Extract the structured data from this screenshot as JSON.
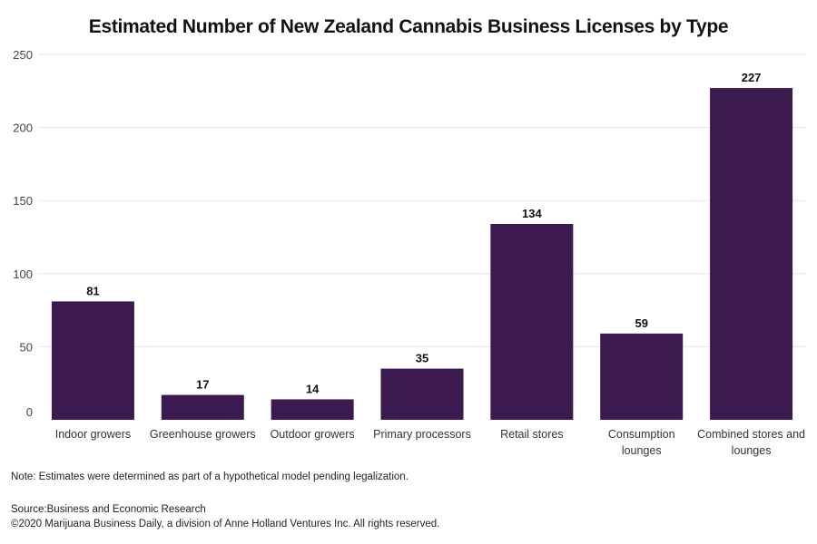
{
  "chart_data": {
    "type": "bar",
    "title": "Estimated Number of New Zealand Cannabis Business Licenses by Type",
    "categories": [
      [
        "Indoor growers"
      ],
      [
        "Greenhouse growers"
      ],
      [
        "Outdoor growers"
      ],
      [
        "Primary processors"
      ],
      [
        "Retail stores"
      ],
      [
        "Consumption",
        "lounges"
      ],
      [
        "Combined stores and",
        "lounges"
      ]
    ],
    "values": [
      81,
      17,
      14,
      35,
      134,
      59,
      227
    ],
    "ylim": [
      0,
      250
    ],
    "yticks": [
      0,
      50,
      100,
      150,
      200,
      250
    ],
    "xlabel": "",
    "ylabel": "",
    "grid": true,
    "bar_color": "#3b1a4f",
    "grid_color": "#e6e6e6",
    "legend": "none"
  },
  "footer": {
    "note": "Note: Estimates were determined as part of a hypothetical model pending legalization.",
    "source": "Source:Business and Economic Research",
    "copyright": "©2020 Marijuana Business Daily, a division of Anne Holland Ventures Inc. All rights reserved."
  }
}
